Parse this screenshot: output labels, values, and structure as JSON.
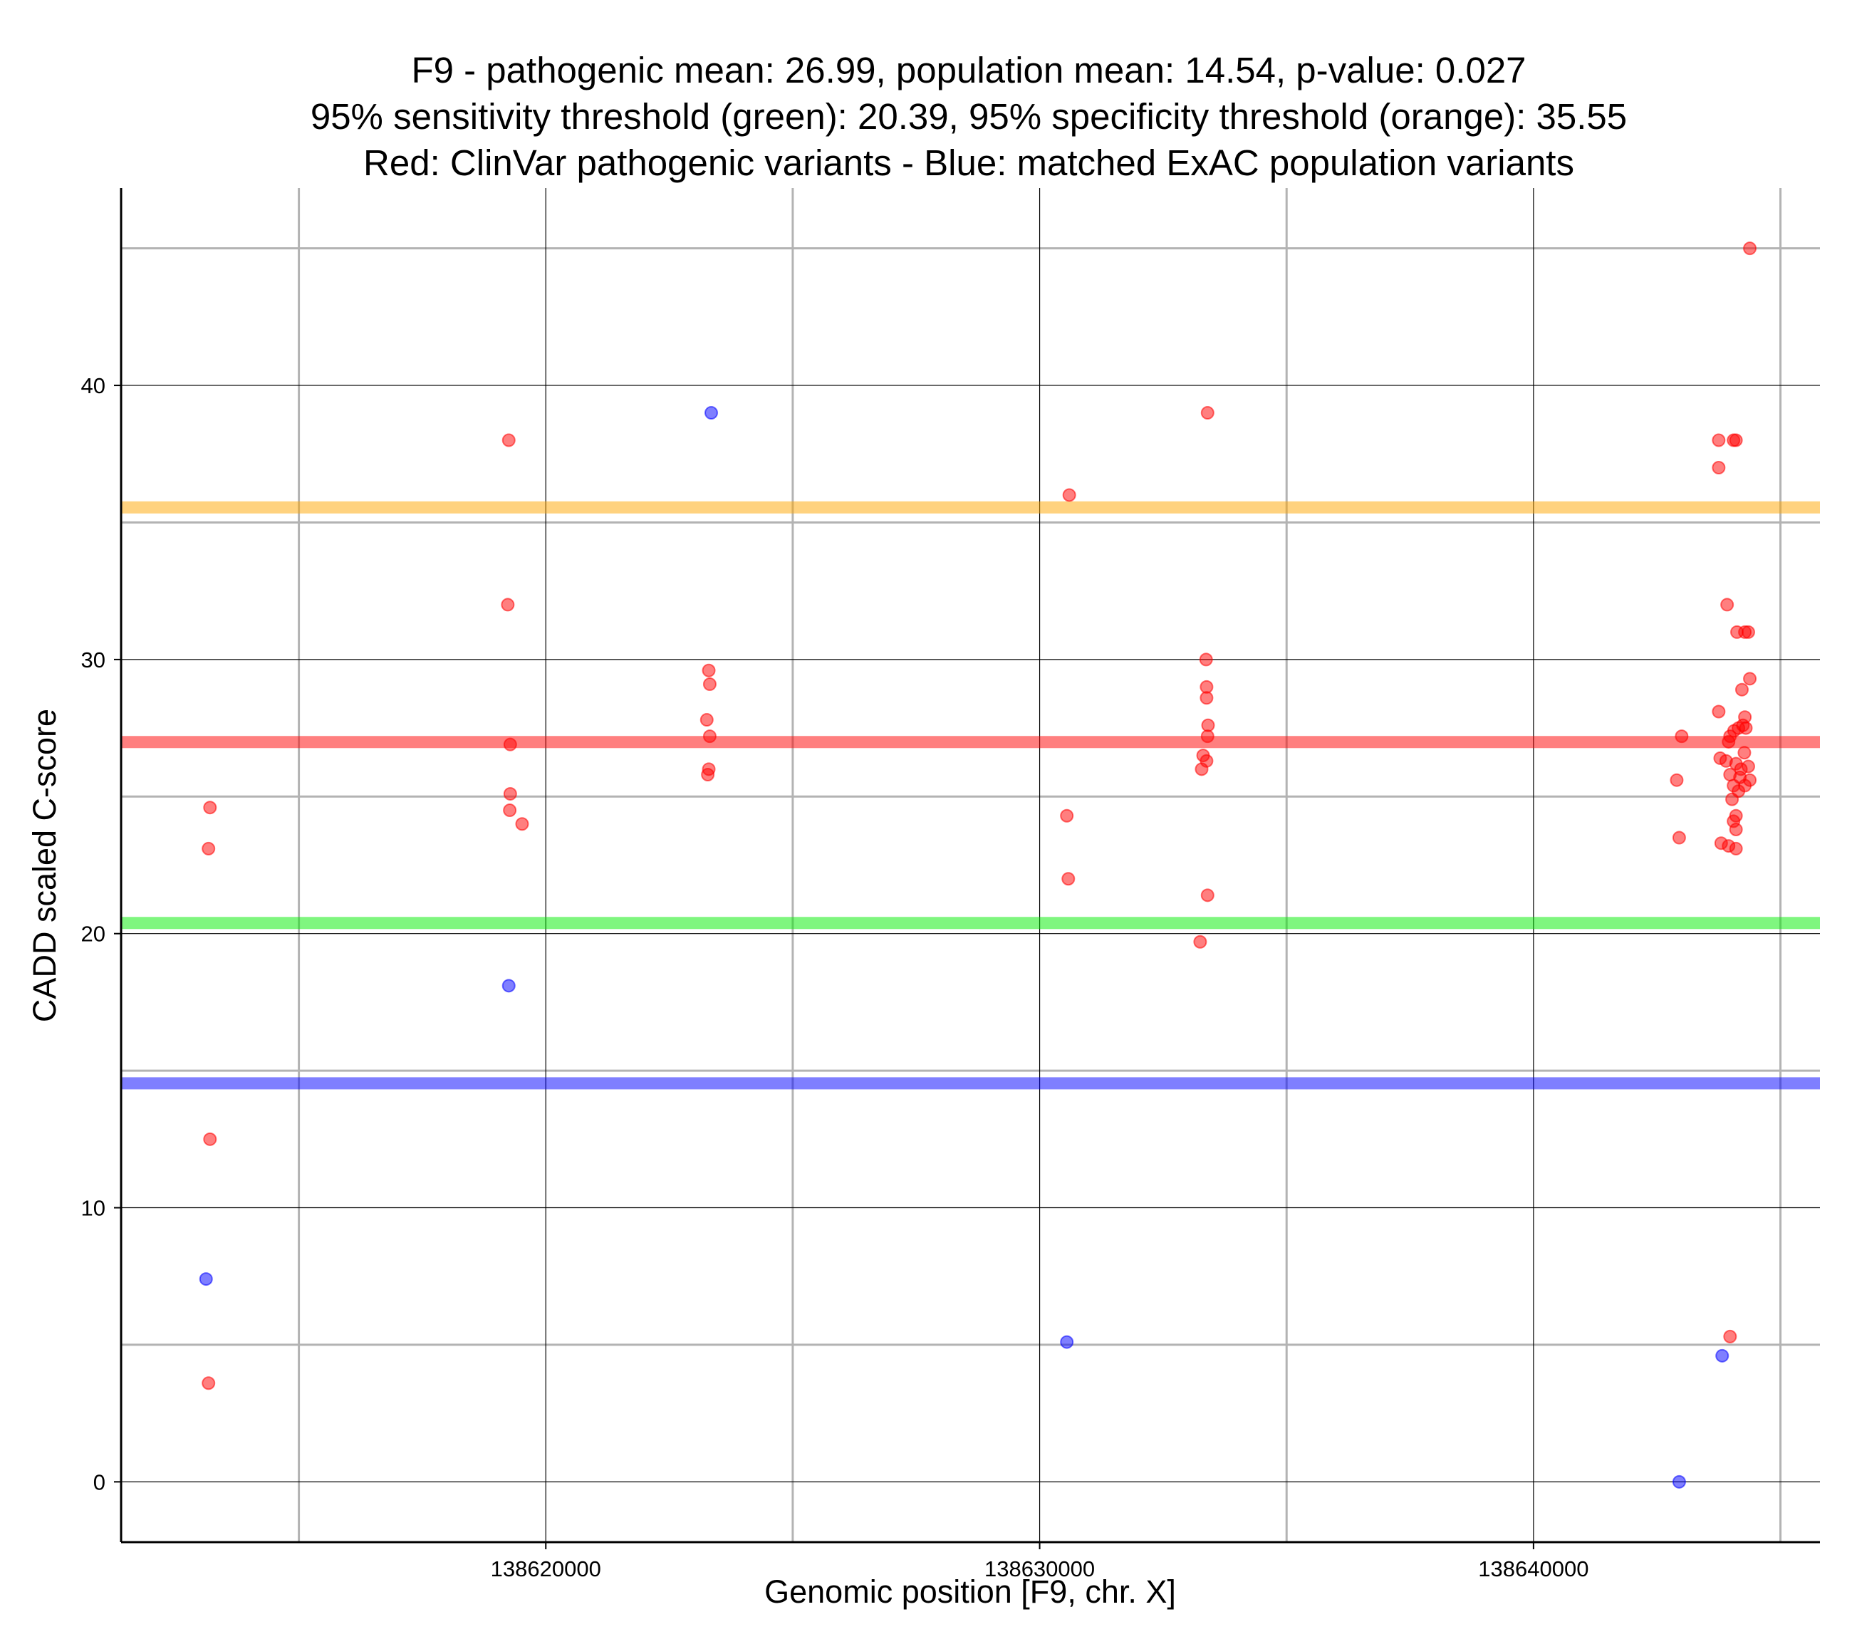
{
  "chart_data": {
    "type": "scatter",
    "title": [
      "F9 - pathogenic mean: 26.99, population mean: 14.54, p-value: 0.027",
      "95% sensitivity threshold (green): 20.39, 95% specificity threshold (orange): 35.55",
      "Red: ClinVar pathogenic variants - Blue: matched ExAC population variants"
    ],
    "xlabel": "Genomic position [F9, chr. X]",
    "ylabel": "CADD scaled C-score",
    "xlim": [
      138611400,
      138645800
    ],
    "ylim": [
      -2.2,
      47.2
    ],
    "xticks": [
      138620000,
      138630000,
      138640000
    ],
    "xtick_labels": [
      "138620000",
      "138630000",
      "138640000"
    ],
    "x_minor_grid": [
      138615000,
      138625000,
      138635000,
      138645000
    ],
    "yticks": [
      0,
      10,
      20,
      30,
      40
    ],
    "ytick_labels": [
      "0",
      "10",
      "20",
      "30",
      "40"
    ],
    "y_minor_grid": [
      5,
      15,
      25,
      35,
      45
    ],
    "grid": true,
    "colors": {
      "pathogenic": "#ff0000",
      "population": "#0000ff",
      "sensitivity_threshold": "#00ee00",
      "specificity_threshold": "#ffa500"
    },
    "hlines": [
      {
        "value": 35.55,
        "color": "#ffa500"
      },
      {
        "value": 26.99,
        "color": "#ff0000"
      },
      {
        "value": 20.39,
        "color": "#00ee00"
      },
      {
        "value": 14.54,
        "color": "#0000ff"
      }
    ],
    "series": [
      {
        "color": "#ff0000",
        "points": [
          [
            138613200,
            24.6
          ],
          [
            138613170,
            23.1
          ],
          [
            138613200,
            12.5
          ],
          [
            138613170,
            3.6
          ],
          [
            138619250,
            38
          ],
          [
            138619230,
            32
          ],
          [
            138619280,
            26.9
          ],
          [
            138619280,
            25.1
          ],
          [
            138619270,
            24.5
          ],
          [
            138619520,
            24
          ],
          [
            138623300,
            29.6
          ],
          [
            138623320,
            29.1
          ],
          [
            138623260,
            27.8
          ],
          [
            138623320,
            27.2
          ],
          [
            138623300,
            26
          ],
          [
            138623280,
            25.8
          ],
          [
            138630600,
            36
          ],
          [
            138630550,
            24.3
          ],
          [
            138630580,
            22
          ],
          [
            138633400,
            39
          ],
          [
            138633370,
            30
          ],
          [
            138633380,
            29
          ],
          [
            138633380,
            28.6
          ],
          [
            138633410,
            27.6
          ],
          [
            138633400,
            27.2
          ],
          [
            138633310,
            26.5
          ],
          [
            138633380,
            26.3
          ],
          [
            138633280,
            26
          ],
          [
            138633400,
            21.4
          ],
          [
            138633250,
            19.7
          ],
          [
            138644380,
            45
          ],
          [
            138643750,
            38
          ],
          [
            138644050,
            38
          ],
          [
            138644100,
            38
          ],
          [
            138643750,
            37
          ],
          [
            138643920,
            32
          ],
          [
            138644120,
            31
          ],
          [
            138644280,
            31
          ],
          [
            138644350,
            31
          ],
          [
            138644380,
            29.3
          ],
          [
            138644220,
            28.9
          ],
          [
            138643750,
            28.1
          ],
          [
            138644280,
            27.9
          ],
          [
            138644240,
            27.6
          ],
          [
            138644150,
            27.5
          ],
          [
            138644060,
            27.4
          ],
          [
            138643000,
            27.2
          ],
          [
            138643980,
            27.2
          ],
          [
            138644300,
            27.5
          ],
          [
            138643950,
            27
          ],
          [
            138644270,
            26.6
          ],
          [
            138643780,
            26.4
          ],
          [
            138643900,
            26.3
          ],
          [
            138644100,
            26.2
          ],
          [
            138644350,
            26.1
          ],
          [
            138644200,
            26
          ],
          [
            138643980,
            25.8
          ],
          [
            138644180,
            25.7
          ],
          [
            138642900,
            25.6
          ],
          [
            138644380,
            25.6
          ],
          [
            138644050,
            25.4
          ],
          [
            138644280,
            25.4
          ],
          [
            138644150,
            25.2
          ],
          [
            138644020,
            24.9
          ],
          [
            138644100,
            24.3
          ],
          [
            138644050,
            24.1
          ],
          [
            138644100,
            23.8
          ],
          [
            138642950,
            23.5
          ],
          [
            138643800,
            23.3
          ],
          [
            138643950,
            23.2
          ],
          [
            138644100,
            23.1
          ],
          [
            138643980,
            5.3
          ]
        ]
      },
      {
        "color": "#0000ff",
        "points": [
          [
            138623350,
            39
          ],
          [
            138619250,
            18.1
          ],
          [
            138613120,
            7.4
          ],
          [
            138630550,
            5.1
          ],
          [
            138643820,
            4.6
          ],
          [
            138642950,
            0
          ]
        ]
      }
    ]
  }
}
